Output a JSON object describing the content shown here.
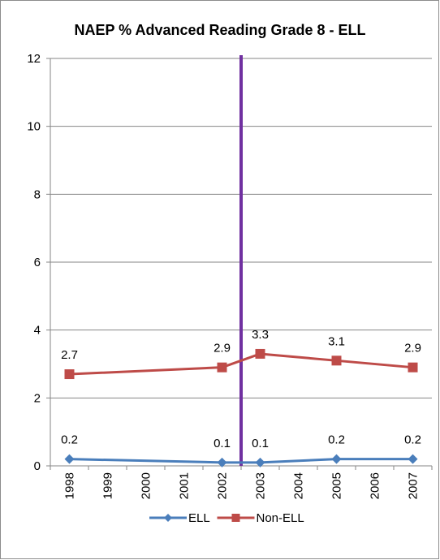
{
  "chart_data": {
    "type": "line",
    "title": "NAEP % Advanced Reading Grade 8 - ELL",
    "xlabel": "",
    "ylabel": "",
    "categories": [
      "1998",
      "1999",
      "2000",
      "2001",
      "2002",
      "2003",
      "2004",
      "2005",
      "2006",
      "2007"
    ],
    "ylim": [
      0,
      12
    ],
    "yticks": [
      0,
      2,
      4,
      6,
      8,
      10,
      12
    ],
    "grid": "horizontal",
    "legend_position": "bottom",
    "marker_line": {
      "between": [
        "2002",
        "2003"
      ],
      "color": "#7030a0"
    },
    "series": [
      {
        "name": "ELL",
        "color": "#4a7ebb",
        "marker": "diamond",
        "points": [
          {
            "x": "1998",
            "y": 0.2,
            "label": "0.2"
          },
          {
            "x": "2002",
            "y": 0.1,
            "label": "0.1"
          },
          {
            "x": "2003",
            "y": 0.1,
            "label": "0.1"
          },
          {
            "x": "2005",
            "y": 0.2,
            "label": "0.2"
          },
          {
            "x": "2007",
            "y": 0.2,
            "label": "0.2"
          }
        ]
      },
      {
        "name": "Non-ELL",
        "color": "#be4b48",
        "marker": "square",
        "points": [
          {
            "x": "1998",
            "y": 2.7,
            "label": "2.7"
          },
          {
            "x": "2002",
            "y": 2.9,
            "label": "2.9"
          },
          {
            "x": "2003",
            "y": 3.3,
            "label": "3.3"
          },
          {
            "x": "2005",
            "y": 3.1,
            "label": "3.1"
          },
          {
            "x": "2007",
            "y": 2.9,
            "label": "2.9"
          }
        ]
      }
    ]
  }
}
